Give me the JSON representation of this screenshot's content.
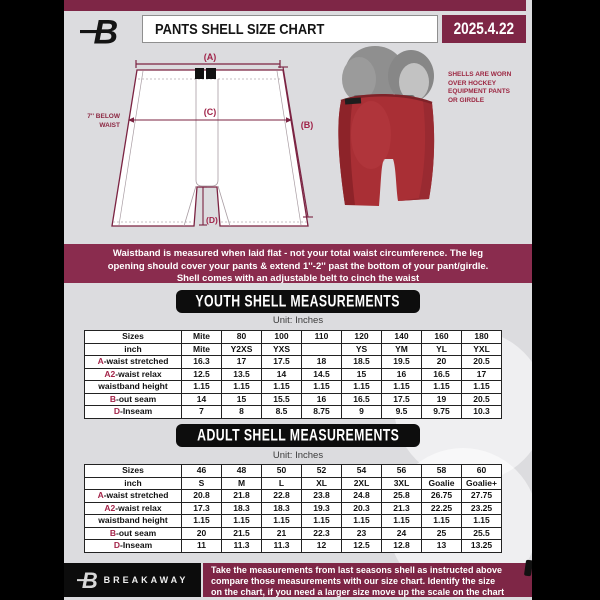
{
  "colors": {
    "maroon": "#7e2646",
    "banner_maroon": "#8a2c4e",
    "accent_red": "#a32348",
    "page_bg": "#dcdcdf",
    "shell_red": "#a92f35"
  },
  "header": {
    "logo_letter": "B",
    "title": "PANTS SHELL SIZE CHART",
    "date": "2025.4.22"
  },
  "diagram": {
    "label_a": "(A)",
    "label_b": "(B)",
    "label_c": "(C)",
    "label_d": "(D)",
    "waist_note_line1": "7'' BELOW",
    "waist_note_line2": "WAIST",
    "photo_note_lines": [
      "SHELLS ARE WORN",
      "OVER HOCKEY",
      "EQUIPMENT PANTS",
      "OR GIRDLE"
    ]
  },
  "banner": {
    "lines": [
      "Waistband is measured when laid flat - not your total waist circumference. The leg",
      "opening should cover your pants & extend 1''-2'' past the bottom of your pant/girdle.",
      "Shell comes with an adjustable belt to cinch the waist"
    ]
  },
  "youth": {
    "title": "YOUTH SHELL MEASUREMENTS",
    "unit": "Unit: Inches"
  },
  "adult": {
    "title": "ADULT SHELL MEASUREMENTS",
    "unit": "Unit: Inches"
  },
  "youth_table": {
    "rows": [
      {
        "label": "Sizes",
        "prefix": "",
        "values": [
          "Mite",
          "80",
          "100",
          "110",
          "120",
          "140",
          "160",
          "180"
        ]
      },
      {
        "label": "inch",
        "prefix": "",
        "values": [
          "Mite",
          "Y2XS",
          "YXS",
          "",
          "YS",
          "YM",
          "YL",
          "YXL"
        ]
      },
      {
        "label": "-waist stretched",
        "prefix": "A",
        "values": [
          "16.3",
          "17",
          "17.5",
          "18",
          "18.5",
          "19.5",
          "20",
          "20.5"
        ]
      },
      {
        "label": "-waist relax",
        "prefix": "A2",
        "values": [
          "12.5",
          "13.5",
          "14",
          "14.5",
          "15",
          "16",
          "16.5",
          "17"
        ]
      },
      {
        "label": "waistband height",
        "prefix": "",
        "values": [
          "1.15",
          "1.15",
          "1.15",
          "1.15",
          "1.15",
          "1.15",
          "1.15",
          "1.15"
        ]
      },
      {
        "label": "-out seam",
        "prefix": "B",
        "values": [
          "14",
          "15",
          "15.5",
          "16",
          "16.5",
          "17.5",
          "19",
          "20.5"
        ]
      },
      {
        "label": "-Inseam",
        "prefix": "D",
        "values": [
          "7",
          "8",
          "8.5",
          "8.75",
          "9",
          "9.5",
          "9.75",
          "10.3"
        ]
      }
    ]
  },
  "adult_table": {
    "rows": [
      {
        "label": "Sizes",
        "prefix": "",
        "values": [
          "46",
          "48",
          "50",
          "52",
          "54",
          "56",
          "58",
          "60"
        ]
      },
      {
        "label": "inch",
        "prefix": "",
        "values": [
          "S",
          "M",
          "L",
          "XL",
          "2XL",
          "3XL",
          "Goalie",
          "Goalie+"
        ]
      },
      {
        "label": "-waist stretched",
        "prefix": "A",
        "values": [
          "20.8",
          "21.8",
          "22.8",
          "23.8",
          "24.8",
          "25.8",
          "26.75",
          "27.75"
        ]
      },
      {
        "label": "-waist relax",
        "prefix": "A2",
        "values": [
          "17.3",
          "18.3",
          "18.3",
          "19.3",
          "20.3",
          "21.3",
          "22.25",
          "23.25"
        ]
      },
      {
        "label": "waistband height",
        "prefix": "",
        "values": [
          "1.15",
          "1.15",
          "1.15",
          "1.15",
          "1.15",
          "1.15",
          "1.15",
          "1.15"
        ]
      },
      {
        "label": "-out seam",
        "prefix": "B",
        "values": [
          "20",
          "21.5",
          "21",
          "22.3",
          "23",
          "24",
          "25",
          "25.5"
        ]
      },
      {
        "label": "-Inseam",
        "prefix": "D",
        "values": [
          "11",
          "11.3",
          "11.3",
          "12",
          "12.5",
          "12.8",
          "13",
          "13.25"
        ]
      }
    ]
  },
  "footer": {
    "brand": "BREAKAWAY",
    "lines": [
      "Take the measurements from last seasons shell as instructed above",
      "compare those measurements  with our size chart. Identify the size",
      "on the chart, if you need a larger size move up the scale on the chart"
    ]
  }
}
